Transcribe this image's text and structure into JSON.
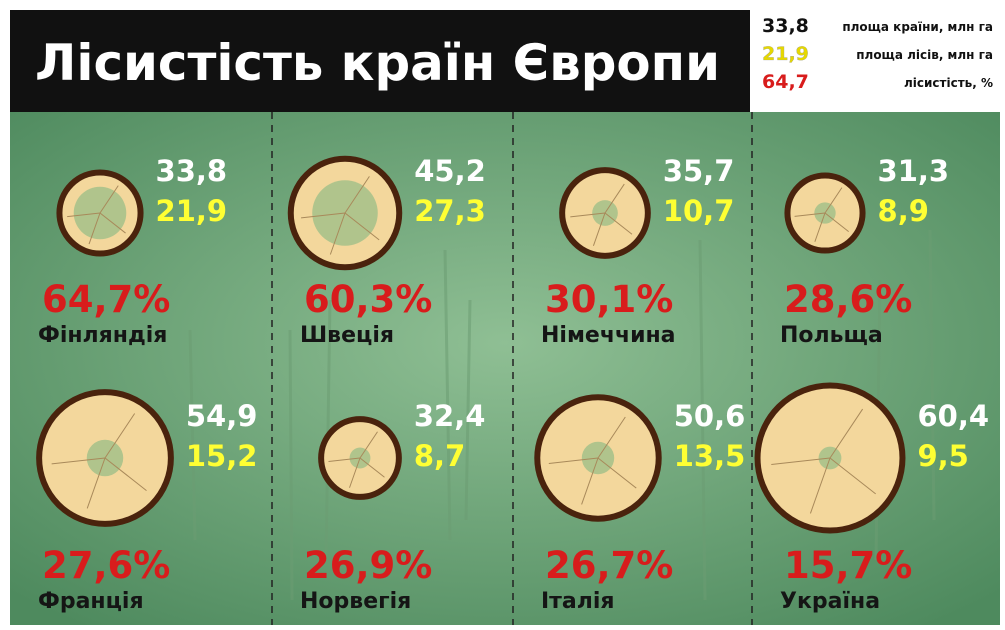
{
  "header": {
    "title": "Лісистість країн Європи"
  },
  "legend": [
    {
      "value": "33,8",
      "label": "площа країни, млн га"
    },
    {
      "value": "21,9",
      "label": "площа лісів, млн га"
    },
    {
      "value": "64,7",
      "label": "лісистість, %"
    }
  ],
  "countries": [
    {
      "name": "Фінляндія",
      "area": 33.8,
      "area_label": "33,8",
      "forest": 21.9,
      "forest_label": "21,9",
      "forest_share": "64,7%"
    },
    {
      "name": "Швеція",
      "area": 45.2,
      "area_label": "45,2",
      "forest": 27.3,
      "forest_label": "27,3",
      "forest_share": "60,3%"
    },
    {
      "name": "Німеччина",
      "area": 35.7,
      "area_label": "35,7",
      "forest": 10.7,
      "forest_label": "10,7",
      "forest_share": "30,1%"
    },
    {
      "name": "Польща",
      "area": 31.3,
      "area_label": "31,3",
      "forest": 8.9,
      "forest_label": "8,9",
      "forest_share": "28,6%"
    },
    {
      "name": "Франція",
      "area": 54.9,
      "area_label": "54,9",
      "forest": 15.2,
      "forest_label": "15,2",
      "forest_share": "27,6%"
    },
    {
      "name": "Норвегія",
      "area": 32.4,
      "area_label": "32,4",
      "forest": 8.7,
      "forest_label": "8,7",
      "forest_share": "26,9%"
    },
    {
      "name": "Італія",
      "area": 50.6,
      "area_label": "50,6",
      "forest": 13.5,
      "forest_label": "13,5",
      "forest_share": "26,7%"
    },
    {
      "name": "Україна",
      "area": 60.4,
      "area_label": "60,4",
      "forest": 9.5,
      "forest_label": "9,5",
      "forest_share": "15,7%"
    }
  ]
}
